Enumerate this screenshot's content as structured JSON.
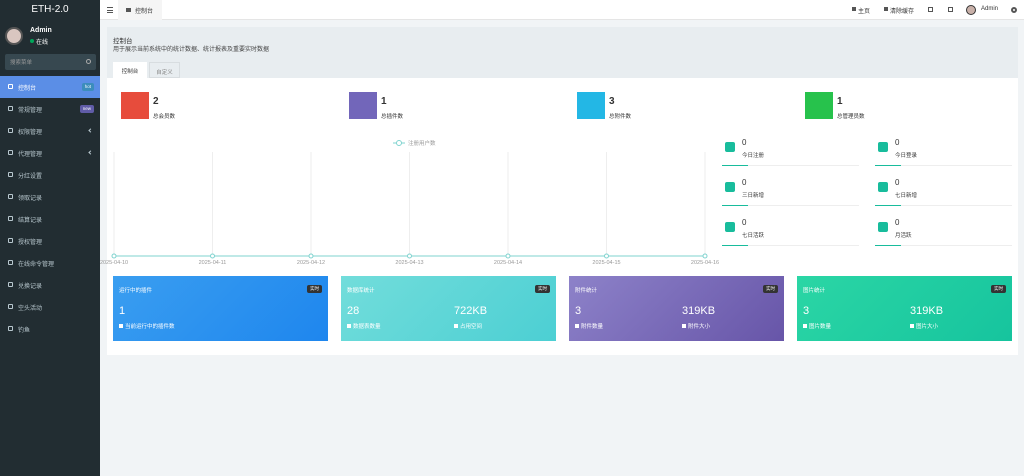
{
  "sidebar": {
    "logo": "ETH-2.0",
    "user": {
      "name": "Admin",
      "status": "在线"
    },
    "search_placeholder": "搜索菜单",
    "menu": [
      {
        "label": "控制台",
        "badge": "hot"
      },
      {
        "label": "常规管理",
        "badge": "new"
      },
      {
        "label": "权限管理"
      },
      {
        "label": "代理管理"
      },
      {
        "label": "分红设置"
      },
      {
        "label": "领取记录"
      },
      {
        "label": "结算记录"
      },
      {
        "label": "授权管理"
      },
      {
        "label": "在线命令管理"
      },
      {
        "label": "兑换记录"
      },
      {
        "label": "空头活动"
      },
      {
        "label": "钓鱼"
      }
    ]
  },
  "navbar": {
    "tab": "控制台",
    "links": [
      "主页",
      "清除缓存"
    ],
    "user": "Admin"
  },
  "panel": {
    "title": "控制台",
    "description": "用于展示当前系统中的统计数据、统计报表及重要实时数据",
    "tabs": [
      "控制台",
      "自定义"
    ]
  },
  "stats": [
    {
      "value": 2,
      "label": "总会员数",
      "color": "#e74c3c"
    },
    {
      "value": 1,
      "label": "总插件数",
      "color": "#7266ba"
    },
    {
      "value": 3,
      "label": "总附件数",
      "color": "#23b7e5"
    },
    {
      "value": 1,
      "label": "总管理员数",
      "color": "#27c24c"
    }
  ],
  "mini_stats": [
    {
      "value": 0,
      "label": "今日注册"
    },
    {
      "value": 0,
      "label": "今日登录"
    },
    {
      "value": 0,
      "label": "三日新增"
    },
    {
      "value": 0,
      "label": "七日新增"
    },
    {
      "value": 0,
      "label": "七日活跃"
    },
    {
      "value": 0,
      "label": "月活跃"
    }
  ],
  "chart_data": {
    "type": "line",
    "x": [
      "2025-04-10",
      "2025-04-11",
      "2025-04-12",
      "2025-04-13",
      "2025-04-14",
      "2025-04-15",
      "2025-04-16"
    ],
    "series": [
      {
        "name": "注册用户数",
        "color": "#7fd3cf",
        "values": [
          0,
          0,
          0,
          0,
          0,
          0,
          0
        ]
      }
    ],
    "ylim": [
      0,
      1
    ]
  },
  "cards": [
    {
      "title": "运行中的插件",
      "badge": "实时",
      "items": [
        {
          "value": "1",
          "label": "当前运行中的插件数"
        }
      ]
    },
    {
      "title": "数据库统计",
      "badge": "实时",
      "items": [
        {
          "value": "28",
          "label": "数据表数量"
        },
        {
          "value": "722KB",
          "label": "占用空间"
        }
      ]
    },
    {
      "title": "附件统计",
      "badge": "实时",
      "items": [
        {
          "value": "3",
          "label": "附件数量"
        },
        {
          "value": "319KB",
          "label": "附件大小"
        }
      ]
    },
    {
      "title": "图片统计",
      "badge": "实时",
      "items": [
        {
          "value": "3",
          "label": "图片数量"
        },
        {
          "value": "319KB",
          "label": "图片大小"
        }
      ]
    }
  ]
}
